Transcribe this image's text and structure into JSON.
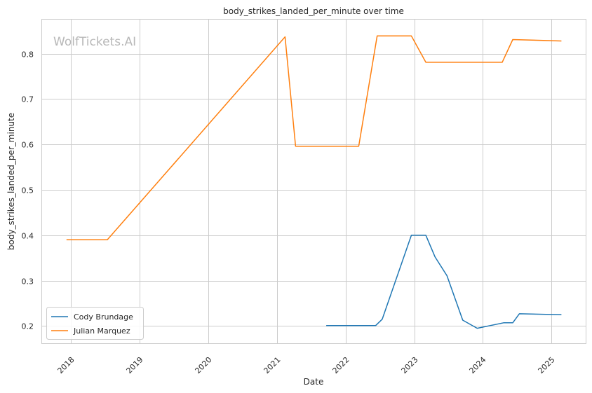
{
  "chart_data": {
    "type": "line",
    "title": "body_strikes_landed_per_minute over time",
    "xlabel": "Date",
    "ylabel": "body_strikes_landed_per_minute",
    "watermark": "WolfTickets.AI",
    "xlim": [
      "2017-08-01",
      "2025-07-01"
    ],
    "ylim": [
      0.162,
      0.875
    ],
    "x_ticks": [
      "2018",
      "2019",
      "2020",
      "2021",
      "2022",
      "2023",
      "2024",
      "2025"
    ],
    "y_ticks": [
      "0.2",
      "0.3",
      "0.4",
      "0.5",
      "0.6",
      "0.7",
      "0.8"
    ],
    "grid": true,
    "legend": "lower-left",
    "series": [
      {
        "name": "Cody Brundage",
        "color": "#1f77b4",
        "points": [
          [
            "2021-09-20",
            0.201
          ],
          [
            "2022-06-10",
            0.201
          ],
          [
            "2022-07-15",
            0.215
          ],
          [
            "2022-12-17",
            0.4
          ],
          [
            "2023-03-04",
            0.4
          ],
          [
            "2023-04-22",
            0.352
          ],
          [
            "2023-06-24",
            0.311
          ],
          [
            "2023-09-16",
            0.213
          ],
          [
            "2023-12-02",
            0.195
          ],
          [
            "2024-04-20",
            0.207
          ],
          [
            "2024-06-08",
            0.207
          ],
          [
            "2024-07-13",
            0.227
          ],
          [
            "2025-02-22",
            0.225
          ]
        ]
      },
      {
        "name": "Julian Marquez",
        "color": "#ff7f0e",
        "points": [
          [
            "2017-12-09",
            0.39
          ],
          [
            "2018-07-14",
            0.39
          ],
          [
            "2021-02-13",
            0.837
          ],
          [
            "2021-04-10",
            0.596
          ],
          [
            "2022-03-12",
            0.596
          ],
          [
            "2022-06-18",
            0.839
          ],
          [
            "2022-12-17",
            0.839
          ],
          [
            "2023-03-04",
            0.781
          ],
          [
            "2024-04-13",
            0.781
          ],
          [
            "2024-06-08",
            0.831
          ],
          [
            "2025-02-22",
            0.828
          ]
        ]
      }
    ]
  }
}
